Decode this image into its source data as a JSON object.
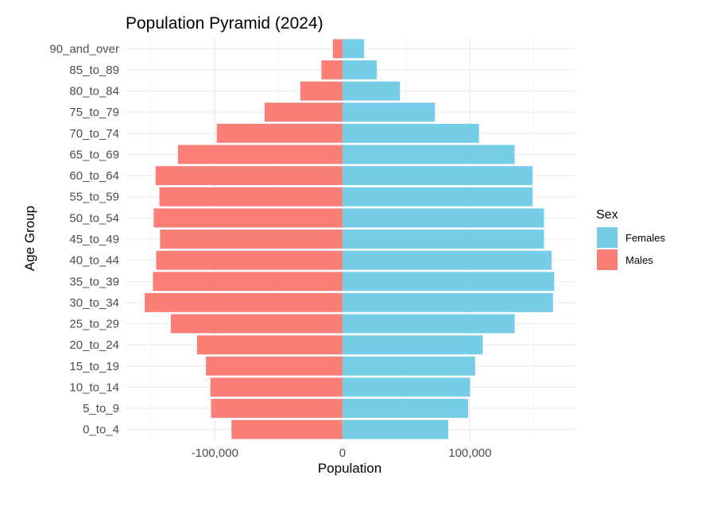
{
  "chart_data": {
    "type": "bar",
    "orientation": "horizontal",
    "layout": "population-pyramid",
    "title": "Population Pyramid (2024)",
    "xlabel": "Population",
    "ylabel": "Age Group",
    "x_ticks": [
      -100000,
      0,
      100000
    ],
    "x_tick_labels": [
      "-100,000",
      "0",
      "100,000"
    ],
    "xlim": [
      -170000,
      182000
    ],
    "grid": true,
    "legend": {
      "title": "Sex",
      "position": "right"
    },
    "categories": [
      "0_to_4",
      "5_to_9",
      "10_to_14",
      "15_to_19",
      "20_to_24",
      "25_to_29",
      "30_to_34",
      "35_to_39",
      "40_to_44",
      "45_to_49",
      "50_to_54",
      "55_to_59",
      "60_to_64",
      "65_to_69",
      "70_to_74",
      "75_to_79",
      "80_to_84",
      "85_to_89",
      "90_and_over"
    ],
    "series": [
      {
        "name": "Females",
        "color": "#75cde8",
        "values": [
          83000,
          98500,
          100000,
          104000,
          110000,
          135000,
          165000,
          166000,
          164000,
          158000,
          158000,
          149000,
          149000,
          135000,
          107000,
          72500,
          45000,
          27000,
          17000
        ]
      },
      {
        "name": "Males",
        "color": "#fb7f77",
        "values": [
          -87000,
          -103000,
          -103500,
          -107000,
          -114000,
          -134500,
          -155000,
          -148500,
          -146000,
          -143000,
          -148000,
          -143500,
          -146500,
          -129000,
          -98500,
          -61000,
          -33000,
          -16500,
          -7500
        ]
      }
    ]
  }
}
